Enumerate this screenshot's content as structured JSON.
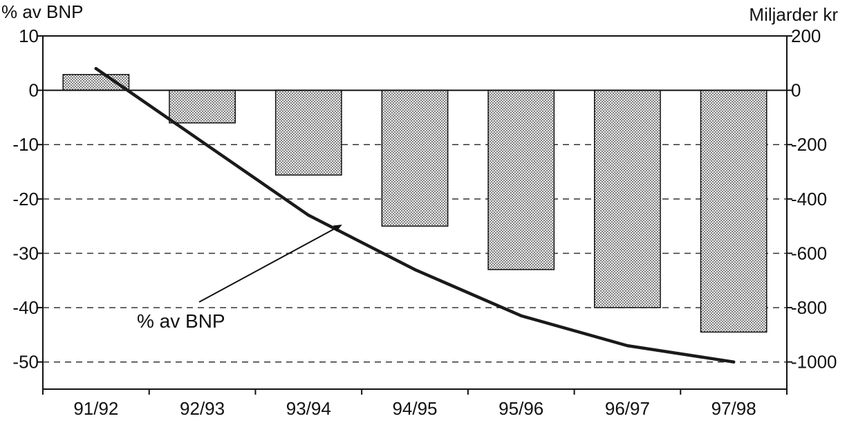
{
  "chart_data": {
    "type": "bar",
    "categories": [
      "91/92",
      "92/93",
      "93/94",
      "94/95",
      "95/96",
      "96/97",
      "97/98"
    ],
    "left_axis": {
      "label": "% av BNP",
      "ylim": [
        -55,
        10
      ],
      "ticks": [
        10,
        0,
        -10,
        -20,
        -30,
        -40,
        -50
      ]
    },
    "right_axis": {
      "label": "Miljarder kr",
      "ylim": [
        -1100,
        200
      ],
      "ticks": [
        200,
        0,
        -200,
        -400,
        -600,
        -800,
        -1000
      ]
    },
    "series": [
      {
        "type": "bar",
        "axis": "right",
        "values": [
          58,
          -120,
          -312,
          -500,
          -660,
          -800,
          -890
        ]
      },
      {
        "type": "line",
        "axis": "left",
        "name": "% av BNP",
        "values": [
          4,
          -9.5,
          -23,
          -33,
          -41.5,
          -47,
          -50
        ]
      }
    ],
    "annotation": {
      "text": "% av BNP",
      "points_to_category": "93/94"
    },
    "grid": {
      "horizontal_dashed": true,
      "at_left_values": [
        -10,
        -20,
        -30,
        -40,
        -50
      ]
    },
    "bar_pattern": "stipple",
    "colors": {
      "bar_fill": "#c8c8c8",
      "line": "#1a1a1a",
      "axis": "#111111",
      "grid": "#333333"
    }
  }
}
